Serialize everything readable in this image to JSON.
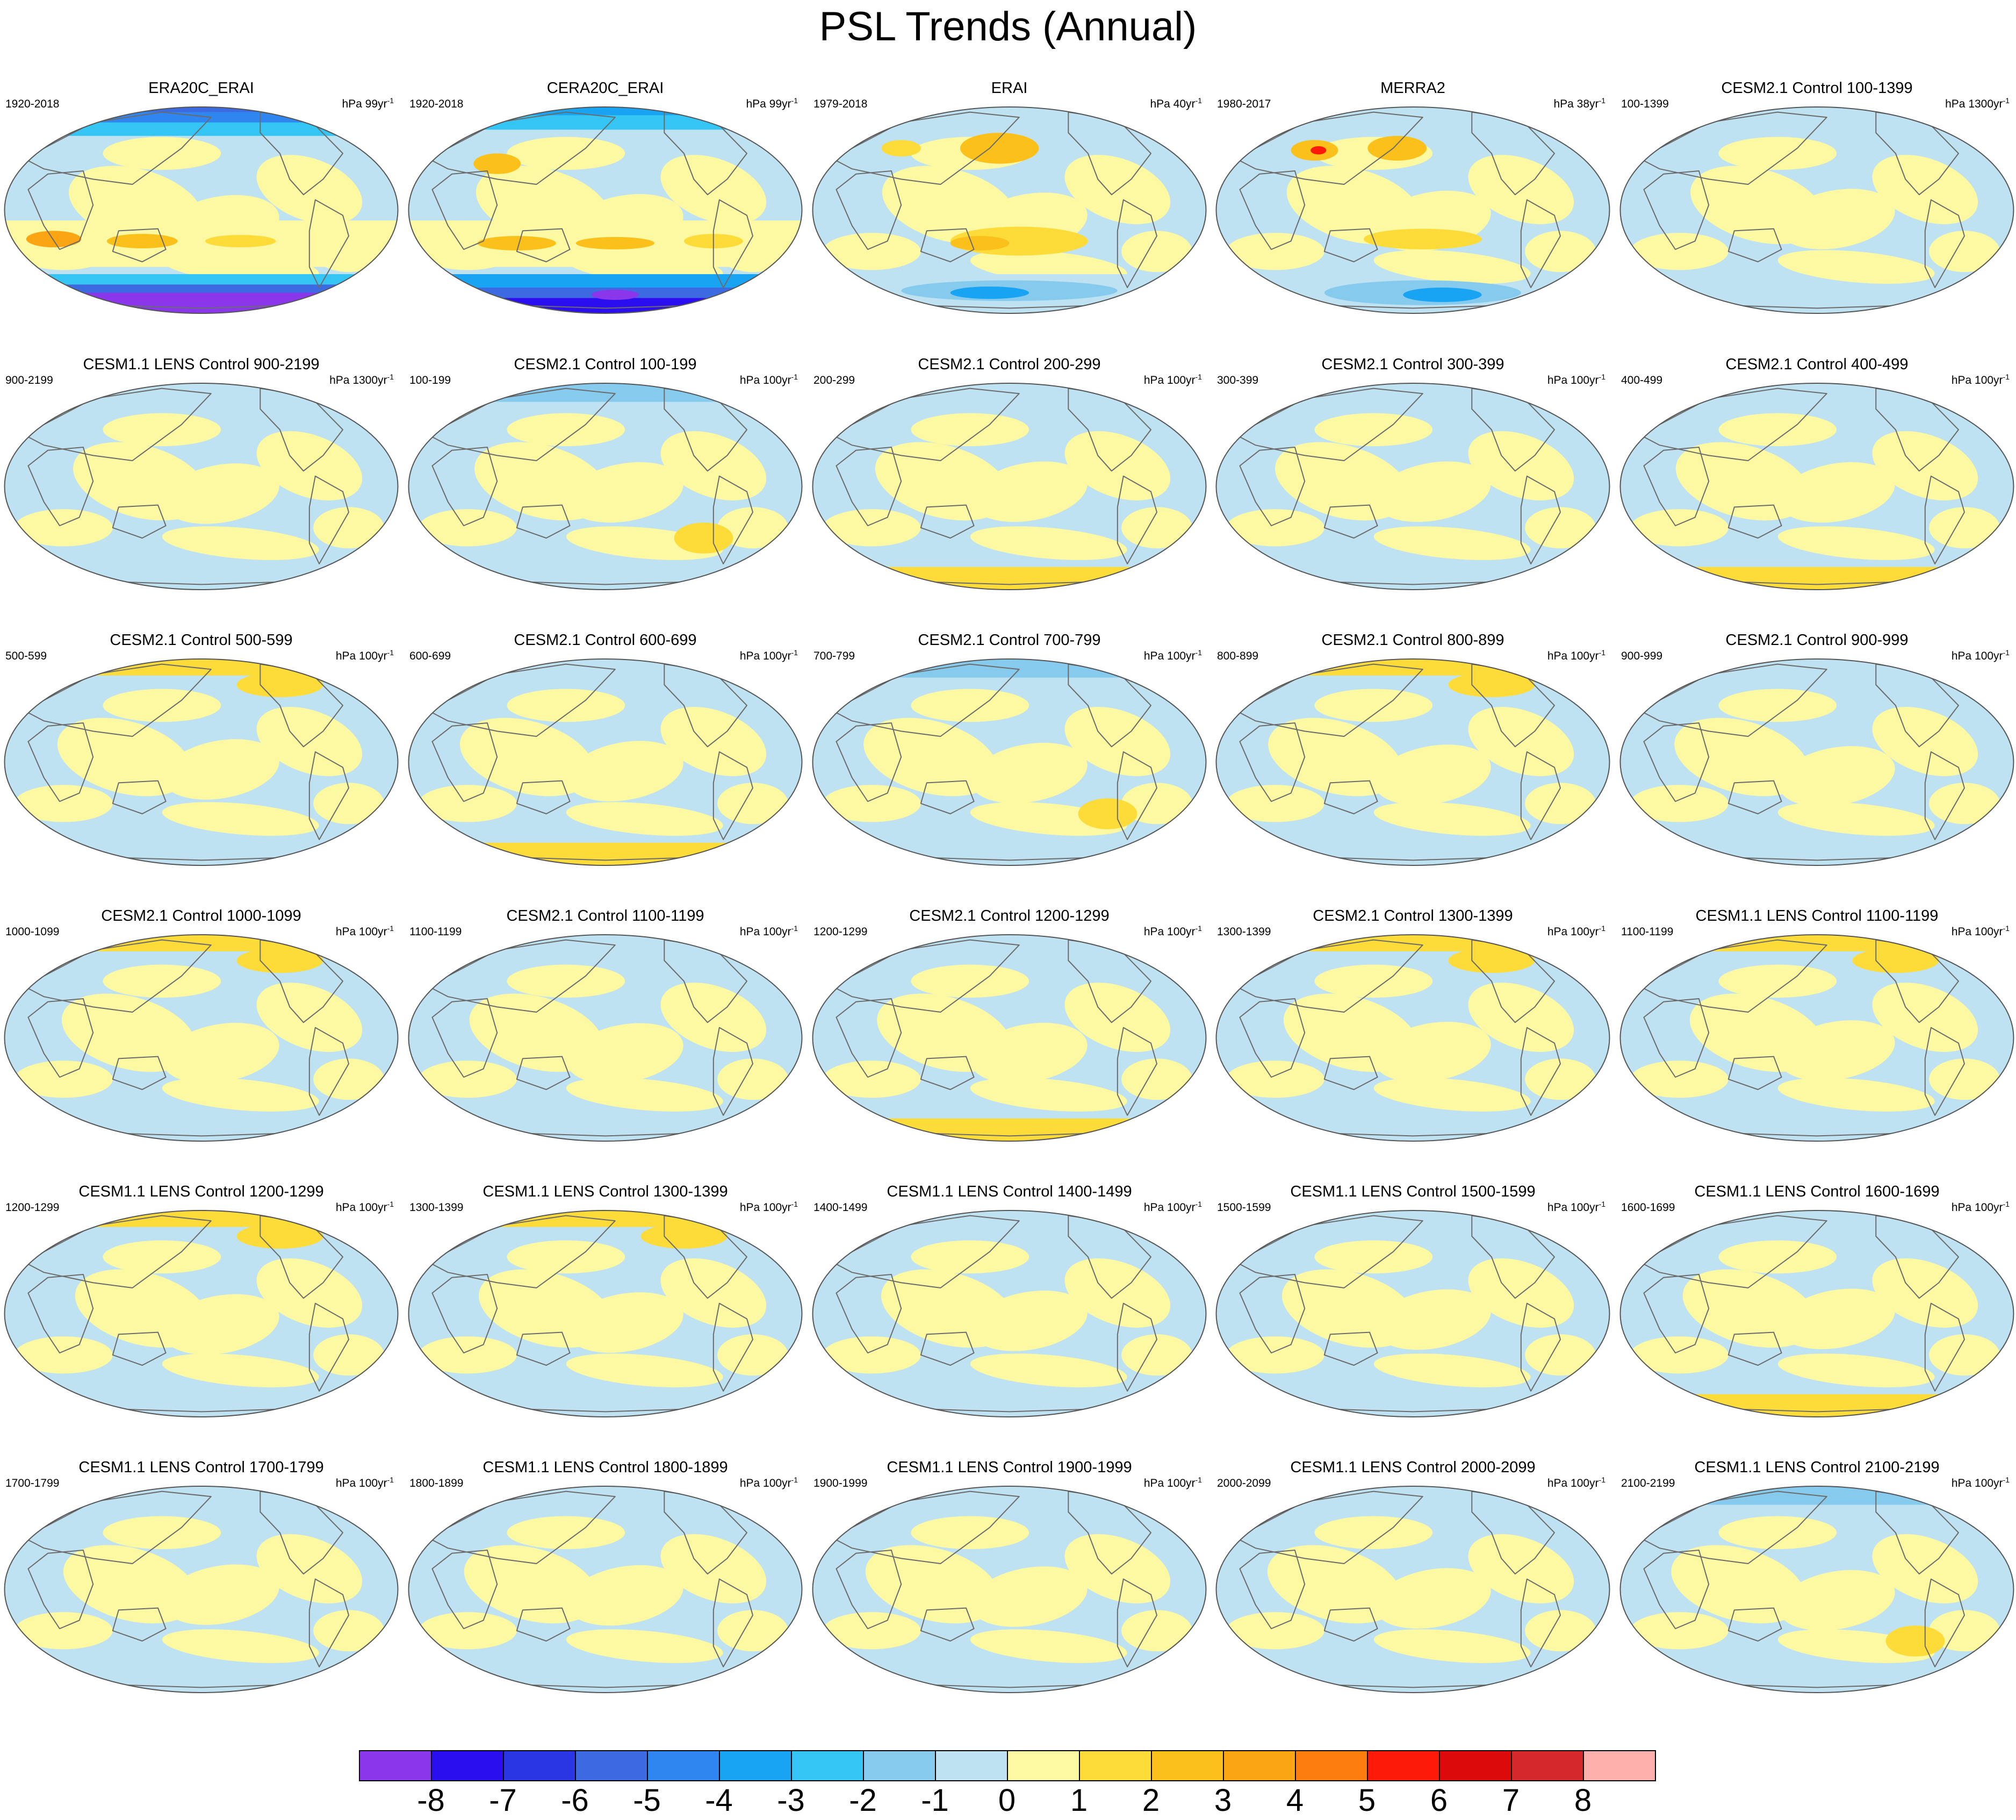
{
  "figure": {
    "title": "PSL Trends (Annual)"
  },
  "colors": {
    "levels": [
      "#8a36ea",
      "#2b0ef0",
      "#2a35e4",
      "#3c6ae0",
      "#2f86f0",
      "#18a4f2",
      "#34c5f5",
      "#86cbee",
      "#bfe2f2",
      "#fdf8a2",
      "#fddc3a",
      "#fbc11a",
      "#fba513",
      "#fc7e0d",
      "#fd1a08",
      "#dc0a0b",
      "#d4282b",
      "#feb0ac"
    ],
    "land_outline": "#6b6b6b",
    "panel_border": "#555555"
  },
  "colorbar": {
    "labels": [
      "-8",
      "-7",
      "-6",
      "-5",
      "-4",
      "-3",
      "-2",
      "-1",
      "0",
      "1",
      "2",
      "3",
      "4",
      "5",
      "6",
      "7",
      "8"
    ]
  },
  "panels": [
    {
      "title": "ERA20C_ERAI",
      "left": "1920-2018",
      "unit": "hPa 99yr",
      "exp": "-1",
      "style": "era20c"
    },
    {
      "title": "CERA20C_ERAI",
      "left": "1920-2018",
      "unit": "hPa 99yr",
      "exp": "-1",
      "style": "cera20c"
    },
    {
      "title": "ERAI",
      "left": "1979-2018",
      "unit": "hPa 40yr",
      "exp": "-1",
      "style": "erai"
    },
    {
      "title": "MERRA2",
      "left": "1980-2017",
      "unit": "hPa 38yr",
      "exp": "-1",
      "style": "merra2"
    },
    {
      "title": "CESM2.1 Control 100-1399",
      "left": "100-1399",
      "unit": "hPa 1300yr",
      "exp": "-1",
      "style": "neutral"
    },
    {
      "title": "CESM1.1 LENS Control 900-2199",
      "left": "900-2199",
      "unit": "hPa 1300yr",
      "exp": "-1",
      "style": "neutral"
    },
    {
      "title": "CESM2.1 Control 100-199",
      "left": "100-199",
      "unit": "hPa 100yr",
      "exp": "-1",
      "style": "blue-north"
    },
    {
      "title": "CESM2.1 Control 200-299",
      "left": "200-299",
      "unit": "hPa 100yr",
      "exp": "-1",
      "style": "south-yellow"
    },
    {
      "title": "CESM2.1 Control 300-399",
      "left": "300-399",
      "unit": "hPa 100yr",
      "exp": "-1",
      "style": "neutral"
    },
    {
      "title": "CESM2.1 Control 400-499",
      "left": "400-499",
      "unit": "hPa 100yr",
      "exp": "-1",
      "style": "south-yellow"
    },
    {
      "title": "CESM2.1 Control 500-599",
      "left": "500-599",
      "unit": "hPa 100yr",
      "exp": "-1",
      "style": "north-yellow"
    },
    {
      "title": "CESM2.1 Control 600-699",
      "left": "600-699",
      "unit": "hPa 100yr",
      "exp": "-1",
      "style": "south-yellow"
    },
    {
      "title": "CESM2.1 Control 700-799",
      "left": "700-799",
      "unit": "hPa 100yr",
      "exp": "-1",
      "style": "blue-north"
    },
    {
      "title": "CESM2.1 Control 800-899",
      "left": "800-899",
      "unit": "hPa 100yr",
      "exp": "-1",
      "style": "north-yellow"
    },
    {
      "title": "CESM2.1 Control 900-999",
      "left": "900-999",
      "unit": "hPa 100yr",
      "exp": "-1",
      "style": "neutral"
    },
    {
      "title": "CESM2.1 Control 1000-1099",
      "left": "1000-1099",
      "unit": "hPa 100yr",
      "exp": "-1",
      "style": "north-yellow"
    },
    {
      "title": "CESM2.1 Control 1100-1199",
      "left": "1100-1199",
      "unit": "hPa 100yr",
      "exp": "-1",
      "style": "neutral"
    },
    {
      "title": "CESM2.1 Control 1200-1299",
      "left": "1200-1299",
      "unit": "hPa 100yr",
      "exp": "-1",
      "style": "south-yellow"
    },
    {
      "title": "CESM2.1 Control 1300-1399",
      "left": "1300-1399",
      "unit": "hPa 100yr",
      "exp": "-1",
      "style": "north-yellow"
    },
    {
      "title": "CESM1.1 LENS Control 1100-1199",
      "left": "1100-1199",
      "unit": "hPa 100yr",
      "exp": "-1",
      "style": "north-yellow"
    },
    {
      "title": "CESM1.1 LENS Control 1200-1299",
      "left": "1200-1299",
      "unit": "hPa 100yr",
      "exp": "-1",
      "style": "north-yellow"
    },
    {
      "title": "CESM1.1 LENS Control 1300-1399",
      "left": "1300-1399",
      "unit": "hPa 100yr",
      "exp": "-1",
      "style": "north-yellow"
    },
    {
      "title": "CESM1.1 LENS Control 1400-1499",
      "left": "1400-1499",
      "unit": "hPa 100yr",
      "exp": "-1",
      "style": "neutral"
    },
    {
      "title": "CESM1.1 LENS Control 1500-1599",
      "left": "1500-1599",
      "unit": "hPa 100yr",
      "exp": "-1",
      "style": "neutral"
    },
    {
      "title": "CESM1.1 LENS Control 1600-1699",
      "left": "1600-1699",
      "unit": "hPa 100yr",
      "exp": "-1",
      "style": "south-yellow"
    },
    {
      "title": "CESM1.1 LENS Control 1700-1799",
      "left": "1700-1799",
      "unit": "hPa 100yr",
      "exp": "-1",
      "style": "neutral"
    },
    {
      "title": "CESM1.1 LENS Control 1800-1899",
      "left": "1800-1899",
      "unit": "hPa 100yr",
      "exp": "-1",
      "style": "neutral"
    },
    {
      "title": "CESM1.1 LENS Control 1900-1999",
      "left": "1900-1999",
      "unit": "hPa 100yr",
      "exp": "-1",
      "style": "neutral"
    },
    {
      "title": "CESM1.1 LENS Control 2000-2099",
      "left": "2000-2099",
      "unit": "hPa 100yr",
      "exp": "-1",
      "style": "neutral"
    },
    {
      "title": "CESM1.1 LENS Control 2100-2199",
      "left": "2100-2199",
      "unit": "hPa 100yr",
      "exp": "-1",
      "style": "blue-north"
    }
  ]
}
